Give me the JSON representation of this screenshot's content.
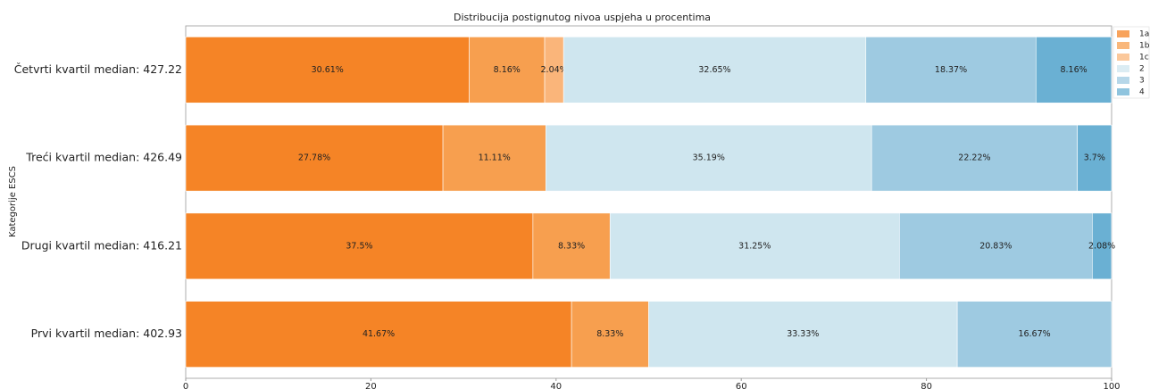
{
  "chart_data": {
    "type": "barh_stacked",
    "title": "Distribucija postignutog nivoa uspjeha u procentima",
    "ylabel": "Kategorije ESCS",
    "categories": [
      "Četvrti kvartil median: 427.22",
      "Treći kvartil median: 426.49",
      "Drugi kvartil median: 416.21",
      "Prvi kvartil median: 402.93"
    ],
    "series": [
      {
        "name": "1a",
        "color": "#f58426",
        "values": [
          30.61,
          27.78,
          37.5,
          41.67
        ],
        "value_labels": [
          "30.61%",
          "27.78%",
          "37.5%",
          "41.67%"
        ]
      },
      {
        "name": "1b",
        "color": "#f79f4f",
        "values": [
          8.16,
          11.11,
          8.33,
          8.33
        ],
        "value_labels": [
          "8.16%",
          "11.11%",
          "8.33%",
          "8.33%"
        ]
      },
      {
        "name": "1c",
        "color": "#fab57a",
        "values": [
          2.04,
          null,
          null,
          null
        ],
        "value_labels": [
          "2.04%",
          null,
          null,
          null
        ]
      },
      {
        "name": "2",
        "color": "#cfe6ef",
        "values": [
          32.65,
          35.19,
          31.25,
          33.33
        ],
        "value_labels": [
          "32.65%",
          "35.19%",
          "31.25%",
          "33.33%"
        ]
      },
      {
        "name": "3",
        "color": "#9ecae1",
        "values": [
          18.37,
          22.22,
          20.83,
          16.67
        ],
        "value_labels": [
          "18.37%",
          "22.22%",
          "20.83%",
          "16.67%"
        ]
      },
      {
        "name": "4",
        "color": "#6ab0d3",
        "values": [
          8.16,
          3.7,
          2.08,
          null
        ],
        "value_labels": [
          "8.16%",
          "3.7%",
          "2.08%",
          null
        ]
      }
    ],
    "xlim": [
      0,
      100
    ],
    "xticks": [
      0,
      20,
      40,
      60,
      80,
      100
    ],
    "legend": "upper right"
  }
}
